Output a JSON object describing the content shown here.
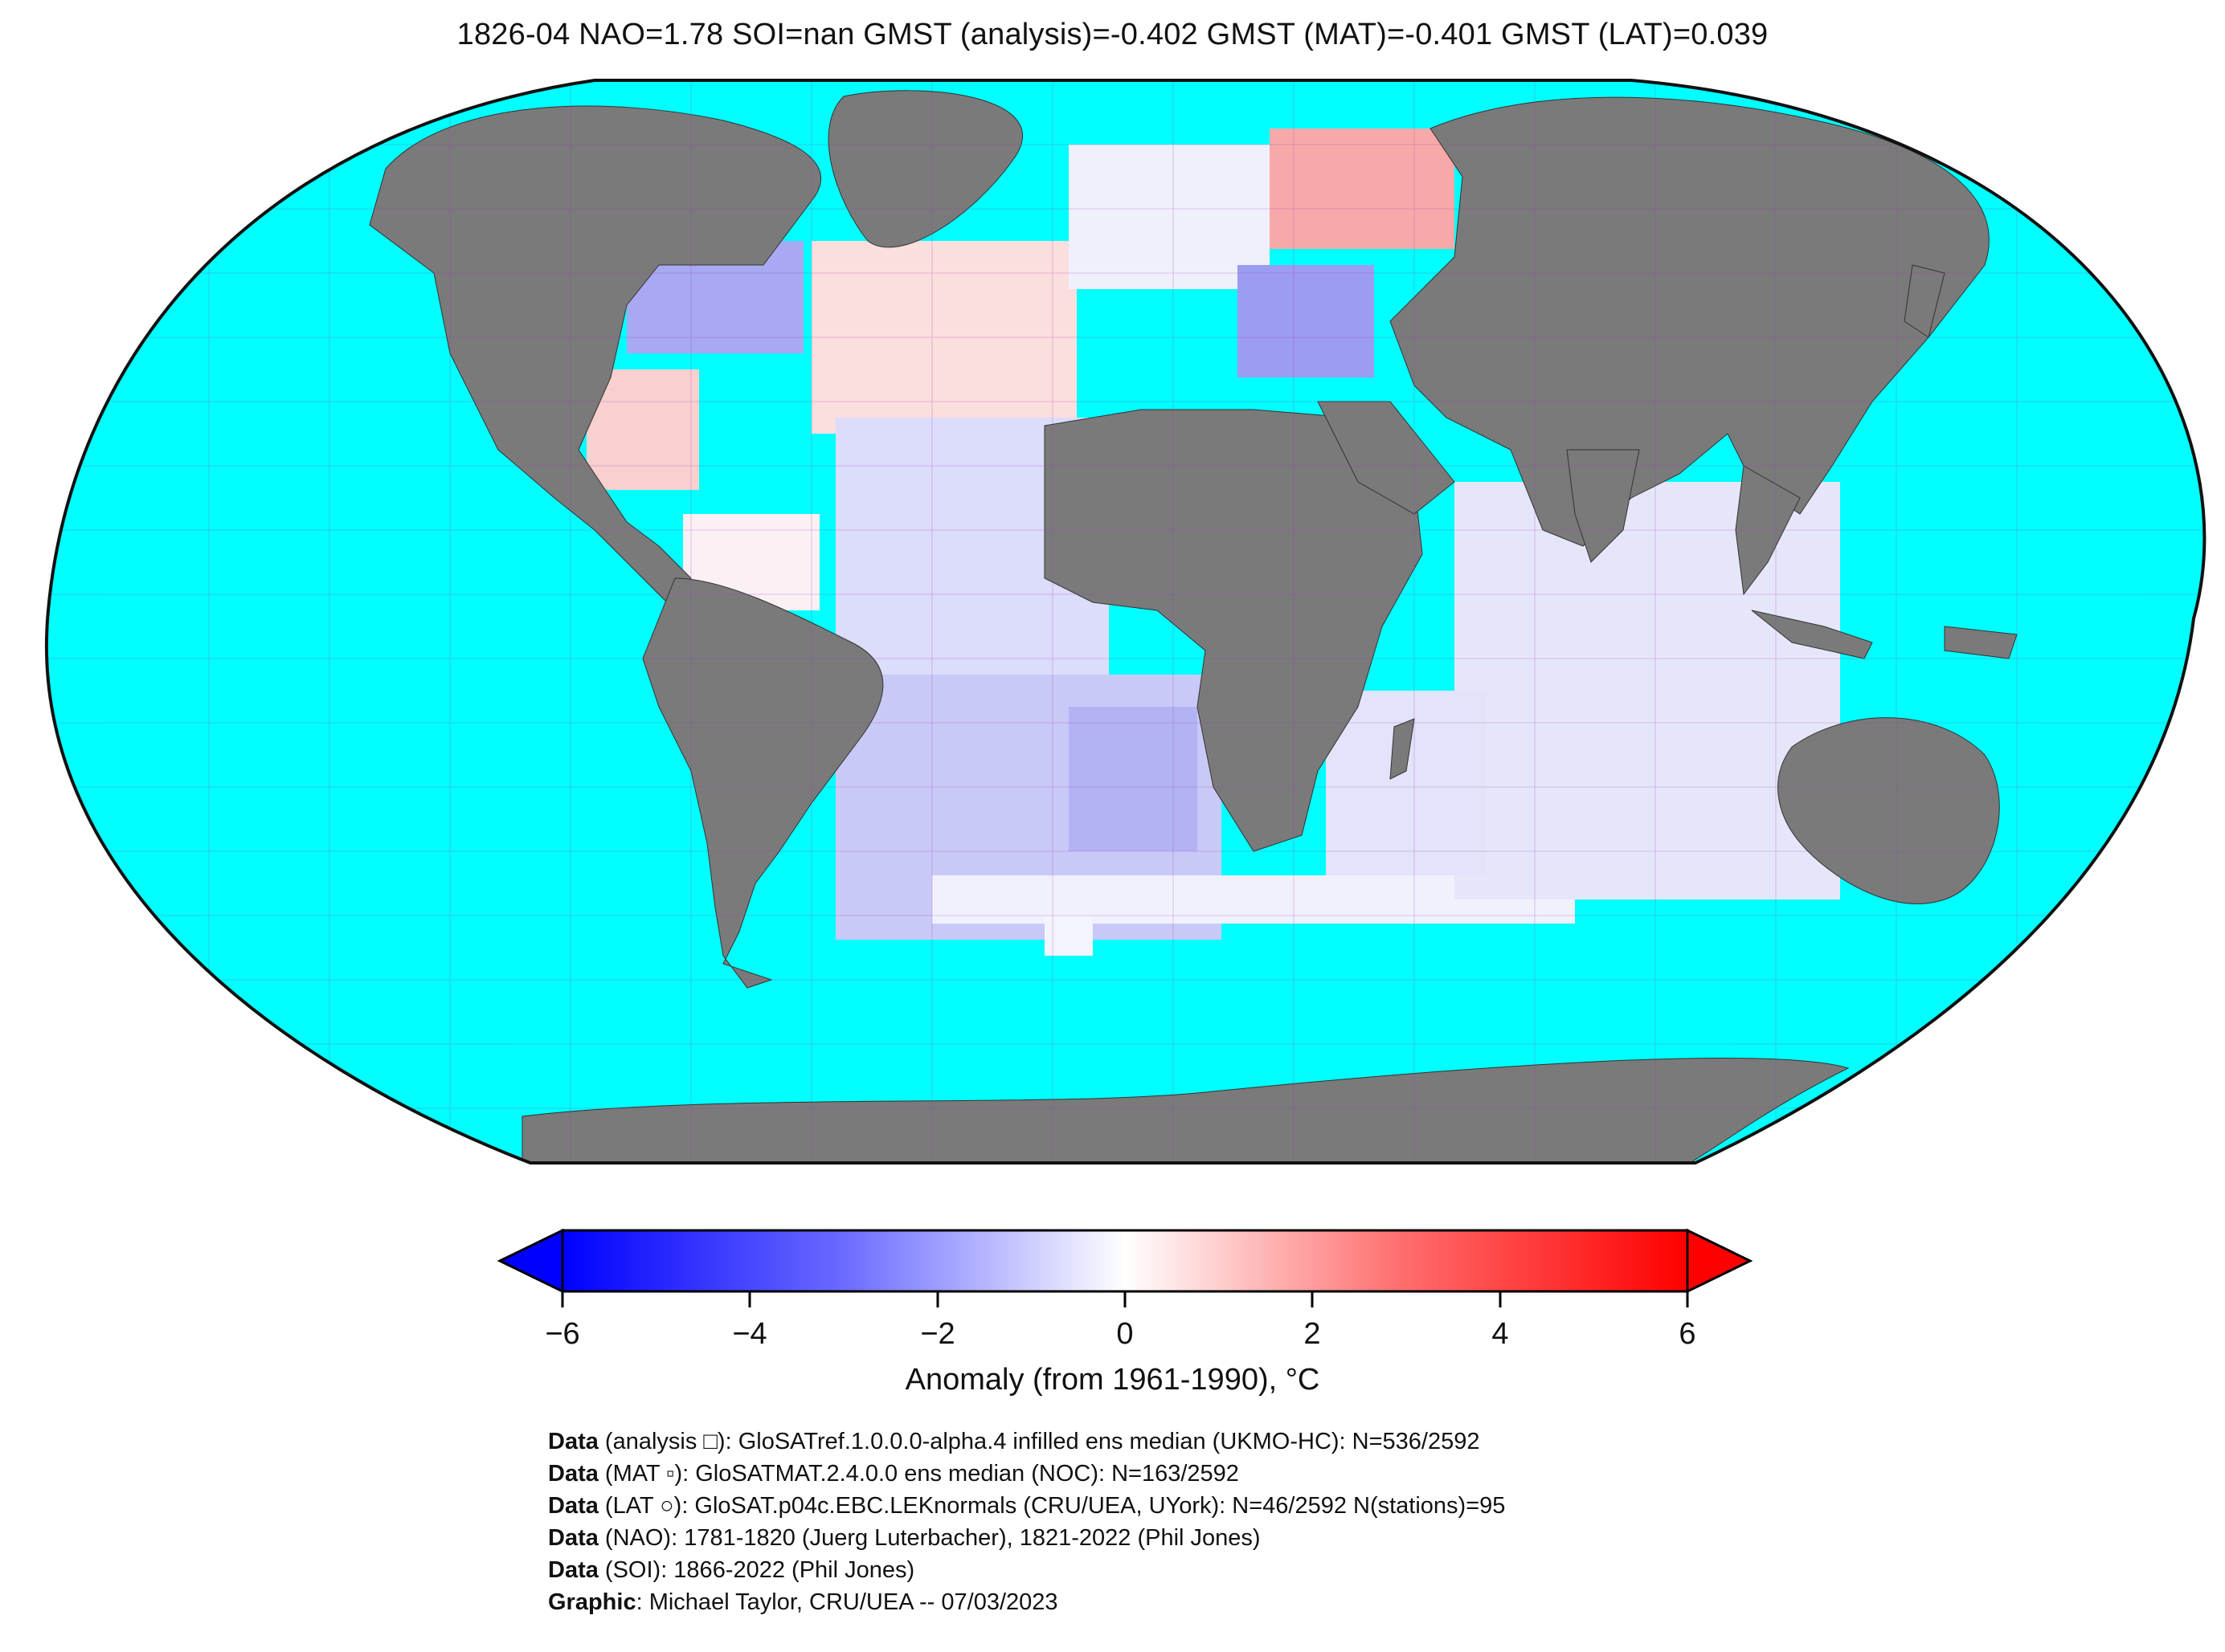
{
  "title": "1826-04 NAO=1.78 SOI=nan GMST (analysis)=-0.402 GMST (MAT)=-0.401 GMST (LAT)=0.039",
  "colors": {
    "ocean": "#00ffff",
    "land": "#7a7a7a",
    "grid": "#9b3db0",
    "cold": "#0000ff",
    "neutral": "#ffffff",
    "warm": "#ff0000"
  },
  "colorbar": {
    "ticks": [
      "−6",
      "−4",
      "−2",
      "0",
      "2",
      "4",
      "6"
    ],
    "tick_values": [
      -6,
      -4,
      -2,
      0,
      2,
      4,
      6
    ],
    "range": [
      -6,
      6
    ],
    "extend": "both",
    "label": "Anomaly (from 1961-1990), °C"
  },
  "anomaly_regions": [
    {
      "name": "north-atlantic-tropics",
      "value": -1.3
    },
    {
      "name": "south-atlantic",
      "value": -2.0
    },
    {
      "name": "indian-ocean",
      "value": -0.8
    },
    {
      "name": "western-russia",
      "value": 2.2
    },
    {
      "name": "eastern-north-america",
      "value": -2.2
    },
    {
      "name": "eastern-europe",
      "value": -2.6
    },
    {
      "name": "north-atlantic-mid",
      "value": 1.2
    },
    {
      "name": "southern-ocean",
      "value": -0.4
    }
  ],
  "credits": [
    {
      "bold": "Data",
      "text": " (analysis □): GloSATref.1.0.0.0-alpha.4 infilled ens median (UKMO-HC): N=536/2592"
    },
    {
      "bold": "Data",
      "text": " (MAT ▫): GloSATMAT.2.4.0.0 ens median (NOC): N=163/2592"
    },
    {
      "bold": "Data",
      "text": " (LAT ○): GloSAT.p04c.EBC.LEKnormals (CRU/UEA, UYork): N=46/2592 N(stations)=95"
    },
    {
      "bold": "Data",
      "text": " (NAO): 1781-1820 (Juerg Luterbacher), 1821-2022 (Phil Jones)"
    },
    {
      "bold": "Data",
      "text": " (SOI): 1866-2022 (Phil Jones)"
    },
    {
      "bold": "Graphic",
      "text": ": Michael Taylor, CRU/UEA -- 07/03/2023"
    }
  ]
}
